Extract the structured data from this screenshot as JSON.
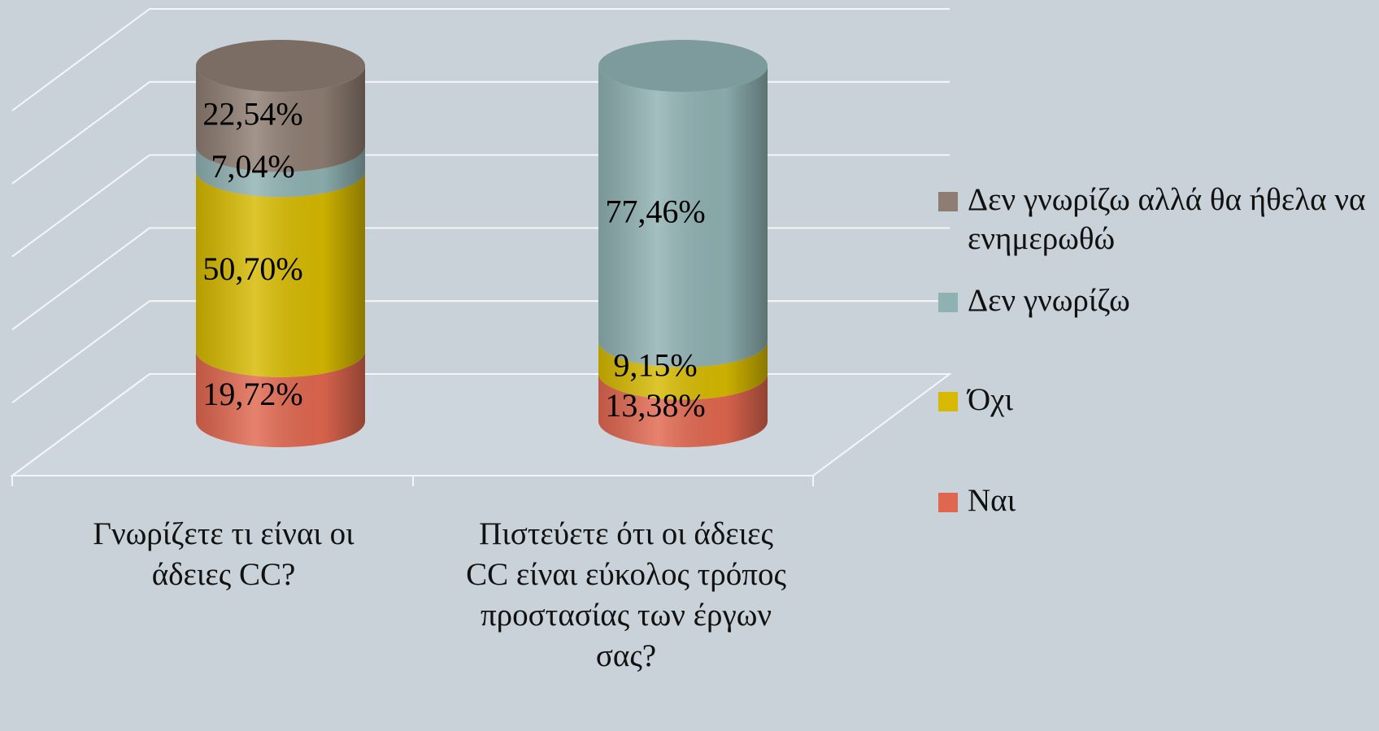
{
  "chart_data": {
    "type": "bar3d_cylinder_stacked",
    "categories": [
      "Γνωρίζετε τι είναι οι άδειες CC?",
      "Πιστεύετε ότι οι άδειες CC είναι εύκολος τρόπος προστασίας των έργων σας?"
    ],
    "series": [
      {
        "name": "Ναι",
        "color": "#e0674f",
        "values": [
          19.72,
          13.38
        ],
        "value_labels": [
          "19,72%",
          "13,38%"
        ]
      },
      {
        "name": "Όχι",
        "color": "#d6b900",
        "values": [
          50.7,
          9.15
        ],
        "value_labels": [
          "50,70%",
          "9,15%"
        ]
      },
      {
        "name": "Δεν γνωρίζω",
        "color": "#8fb1b2",
        "values": [
          7.04,
          77.46
        ],
        "value_labels": [
          "7,04%",
          "77,46%"
        ]
      },
      {
        "name": "Δεν γνωρίζω αλλά θα ήθελα να ενημερωθώ",
        "color": "#8e7d72",
        "values": [
          22.54,
          0
        ],
        "value_labels": [
          "22,54%",
          null
        ]
      }
    ],
    "ylim": [
      0,
      100
    ],
    "yticks": [
      0,
      20,
      40,
      60,
      80,
      100
    ],
    "grid": true,
    "legend": "right"
  }
}
